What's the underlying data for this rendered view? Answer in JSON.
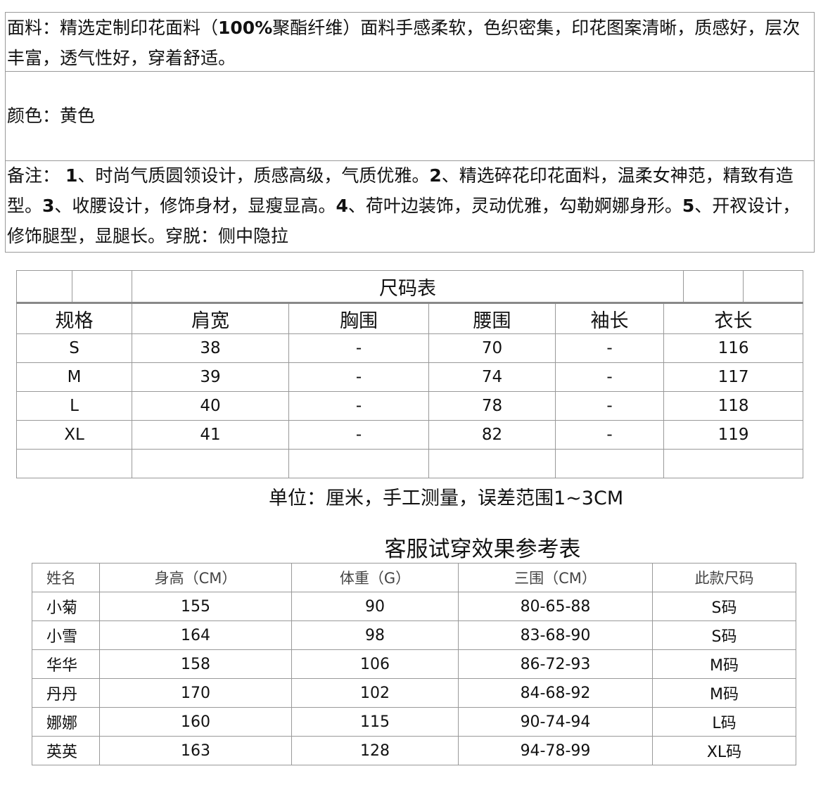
{
  "fabric": {
    "prefix": "面料：精选定制印花面料（",
    "bold": "100%",
    "rest": "聚酯纤维）面料手感柔软，色织密集，印花图案清晰，质感好，层次丰富，透气性好，穿着舒适。"
  },
  "color": "颜色：黄色",
  "notes": [
    {
      "t": "备注： "
    },
    {
      "b": "1"
    },
    {
      "t": "、时尚气质圆领设计，质感高级，气质优雅。"
    },
    {
      "b": "2"
    },
    {
      "t": "、精选碎花印花面料，温柔女神范，精致有造型。"
    },
    {
      "b": "3"
    },
    {
      "t": "、收腰设计，修饰身材，显瘦显高。"
    },
    {
      "b": "4"
    },
    {
      "t": "、荷叶边装饰，灵动优雅，勾勒婀娜身形。"
    },
    {
      "b": "5"
    },
    {
      "t": "、开衩设计，修饰腿型，显腿长。穿脱：侧中隐拉"
    }
  ],
  "size_table": {
    "title": "尺码表",
    "headers": [
      "规格",
      "肩宽",
      "胸围",
      "腰围",
      "袖长",
      "衣长"
    ],
    "rows": [
      [
        "S",
        "38",
        "-",
        "70",
        "-",
        "116"
      ],
      [
        "M",
        "39",
        "-",
        "74",
        "-",
        "117"
      ],
      [
        "L",
        "40",
        "-",
        "78",
        "-",
        "118"
      ],
      [
        "XL",
        "41",
        "-",
        "82",
        "-",
        "119"
      ]
    ]
  },
  "unit_note": "单位：厘米，手工测量，误差范围1~3CM",
  "fit_table": {
    "title": "客服试穿效果参考表",
    "headers": [
      "姓名",
      "身高（CM）",
      "体重（G）",
      "三围（CM）",
      "此款尺码"
    ],
    "rows": [
      [
        "小菊",
        "155",
        "90",
        "80-65-88",
        "S码"
      ],
      [
        "小雪",
        "164",
        "98",
        "83-68-90",
        "S码"
      ],
      [
        "华华",
        "158",
        "106",
        "86-72-93",
        "M码"
      ],
      [
        "丹丹",
        "170",
        "102",
        "84-68-92",
        "M码"
      ],
      [
        "娜娜",
        "160",
        "115",
        "90-74-94",
        "L码"
      ],
      [
        "英英",
        "163",
        "128",
        "94-78-99",
        "XL码"
      ]
    ]
  }
}
